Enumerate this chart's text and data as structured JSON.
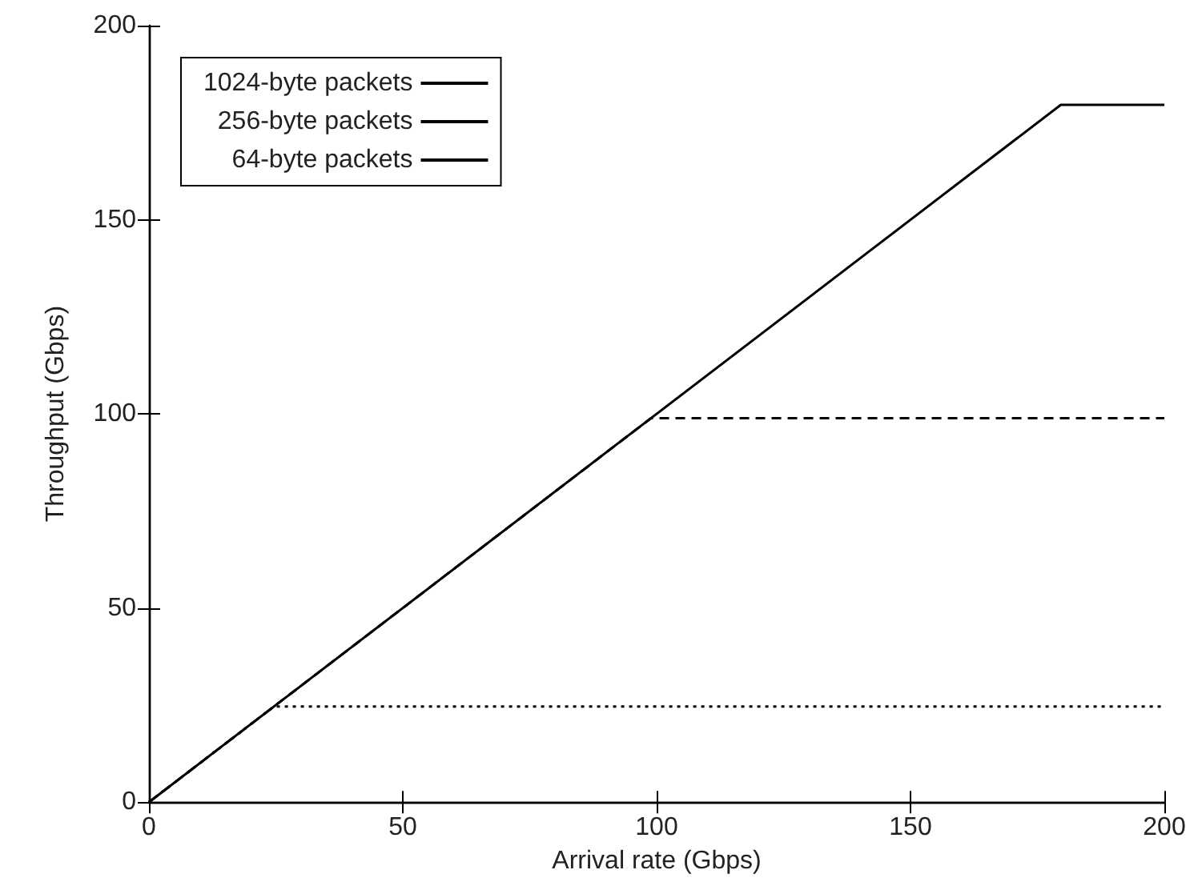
{
  "chart_data": {
    "type": "line",
    "xlabel": "Arrival rate (Gbps)",
    "ylabel": "Throughput (Gbps)",
    "xlim": [
      0,
      200
    ],
    "xticks": [
      0,
      50,
      100,
      150,
      200
    ],
    "ylim": [
      0,
      200
    ],
    "yticks": [
      0,
      50,
      100,
      150,
      200
    ],
    "grid": false,
    "legend": "top left",
    "marker": "none",
    "series": [
      {
        "name": "1024-byte packets",
        "color": "#000000",
        "line_style": "solid",
        "x": [
          0,
          179.6,
          200
        ],
        "values": [
          0,
          179.6,
          179.6
        ]
      },
      {
        "name": "256-byte packets",
        "color": "#000000",
        "line_style": "dashed",
        "x": [
          0,
          98.9,
          200
        ],
        "values": [
          0,
          98.9,
          98.9
        ]
      },
      {
        "name": "64-byte packets",
        "color": "#000000",
        "line_style": "dotted",
        "x": [
          0,
          24.6,
          200
        ],
        "values": [
          0,
          24.6,
          24.6
        ]
      }
    ]
  }
}
